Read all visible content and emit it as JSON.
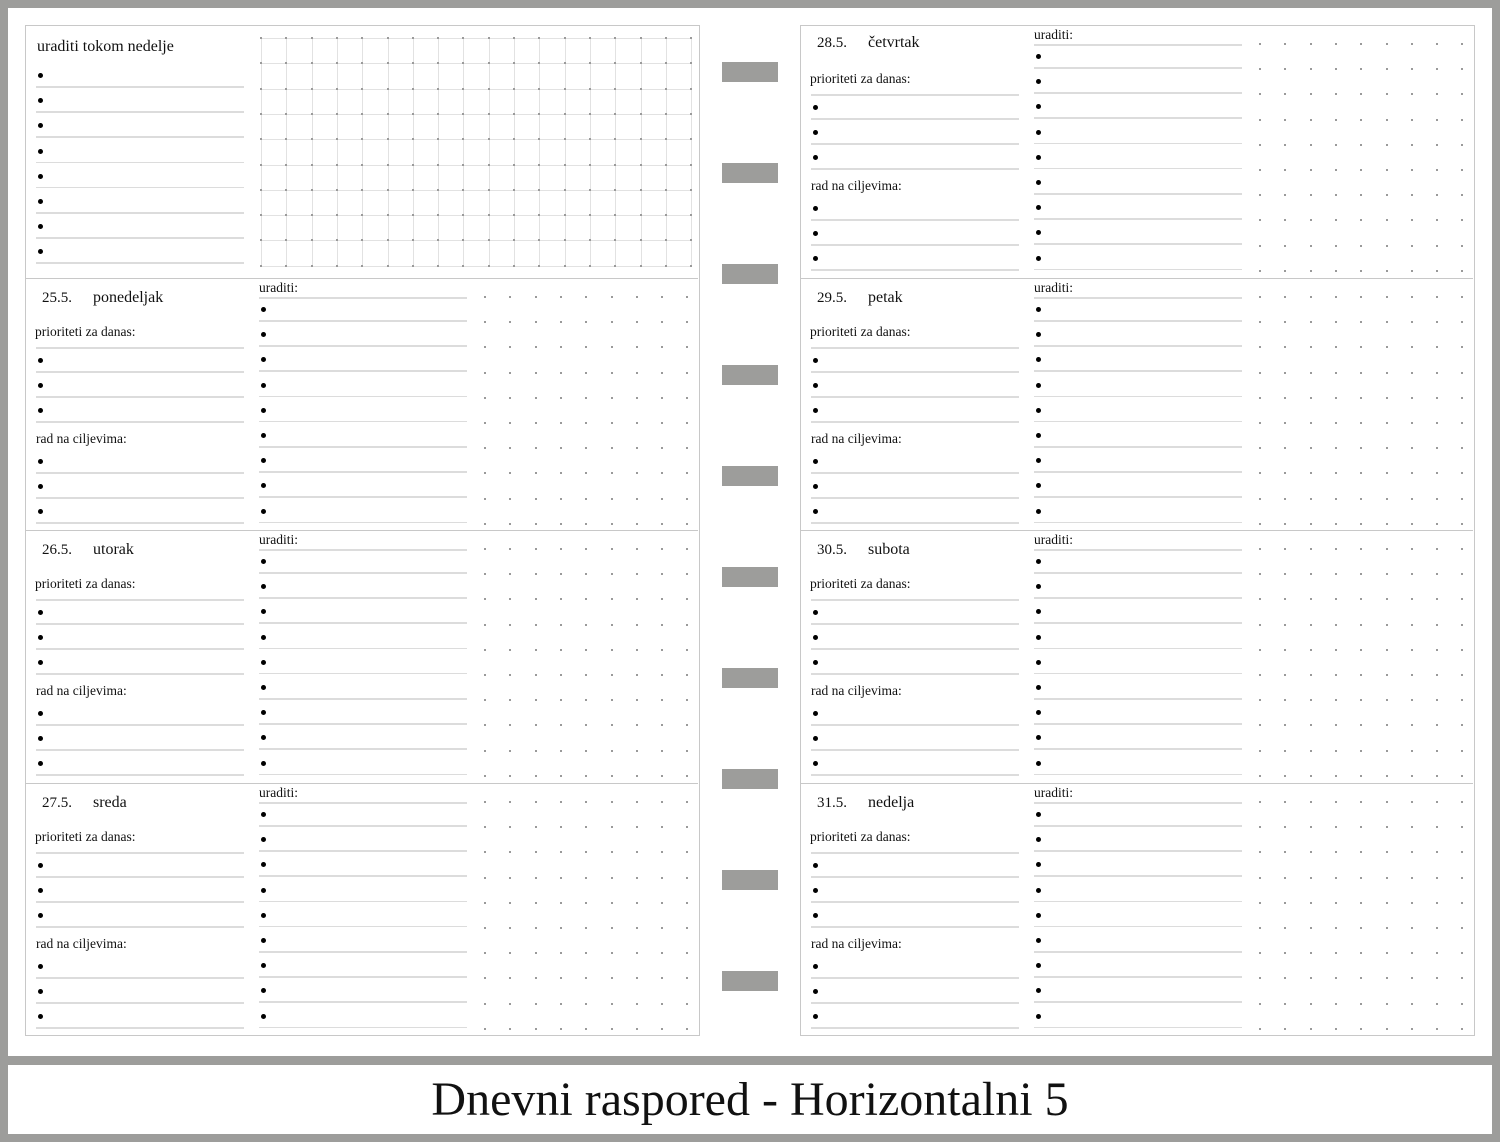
{
  "title": "Dnevni raspored - Horizontalni 5",
  "weekly": {
    "label": "uraditi tokom nedelje",
    "bullets": 8
  },
  "labels": {
    "todo": "uraditi:",
    "priorities": "prioriteti za danas:",
    "goals": "rad na ciljevima:"
  },
  "days": [
    {
      "date": "25.5.",
      "name": "ponedeljak"
    },
    {
      "date": "26.5.",
      "name": "utorak"
    },
    {
      "date": "27.5.",
      "name": "sreda"
    },
    {
      "date": "28.5.",
      "name": "četvrtak"
    },
    {
      "date": "29.5.",
      "name": "petak"
    },
    {
      "date": "30.5.",
      "name": "subota"
    },
    {
      "date": "31.5.",
      "name": "nedelja"
    }
  ],
  "colors": {
    "frame": "#9d9d9b",
    "tab": "#9d9d9b",
    "rule": "#dcdcdc"
  }
}
